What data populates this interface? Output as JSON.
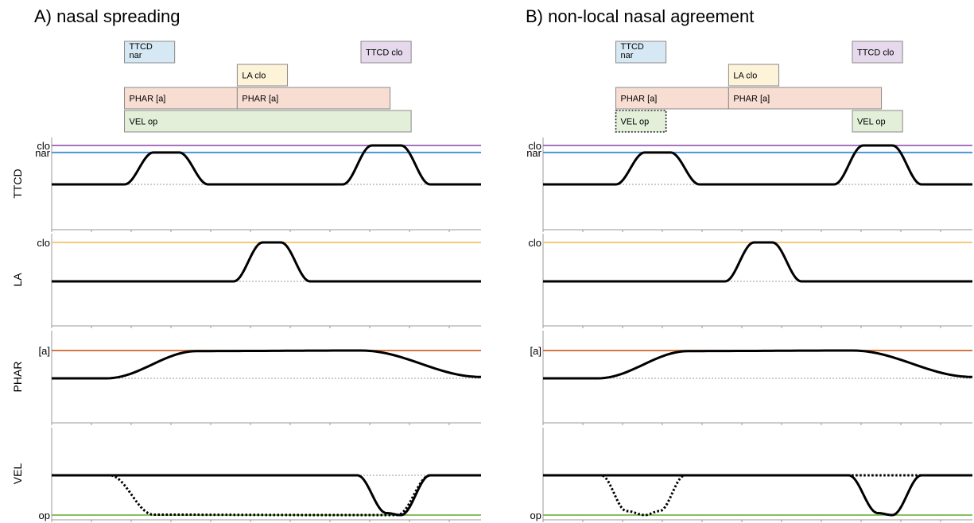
{
  "colors": {
    "ttcd_box": "#d6e8f3",
    "ttcd_clo_box": "#e6d9ec",
    "la_box": "#fdf3d9",
    "phar_box": "#f8ddd2",
    "vel_box": "#e3efd9",
    "clo_line": "#9b5fb5",
    "nar_line": "#3f8fd8",
    "la_line": "#f5c06a",
    "phar_line": "#c9642a",
    "vel_line": "#7ab648",
    "trajectory": "#000000",
    "baseline_dotted": "#777777",
    "axis": "#999999"
  },
  "panels": [
    {
      "id": "A",
      "title": "A) nasal spreading",
      "gestures": [
        {
          "label": "TTCD nar",
          "lines": [
            "TTCD",
            "nar"
          ],
          "color_key": "ttcd_box",
          "start": 2,
          "end": 3.38,
          "row": 0,
          "dotted": false
        },
        {
          "label": "TTCD clo",
          "lines": [
            "TTCD clo"
          ],
          "color_key": "ttcd_clo_box",
          "start": 8.5,
          "end": 9.88,
          "row": 0,
          "dotted": false
        },
        {
          "label": "LA clo",
          "lines": [
            "LA clo"
          ],
          "color_key": "la_box",
          "start": 5.1,
          "end": 6.48,
          "row": 1,
          "dotted": false
        },
        {
          "label": "PHAR [a]",
          "lines": [
            "PHAR [a]"
          ],
          "color_key": "phar_box",
          "start": 2,
          "end": 5.1,
          "row": 2,
          "dotted": false
        },
        {
          "label": "PHAR [a]",
          "lines": [
            "PHAR [a]"
          ],
          "color_key": "phar_box",
          "start": 5.1,
          "end": 9.3,
          "row": 2,
          "dotted": false
        },
        {
          "label": "VEL op",
          "lines": [
            "VEL op"
          ],
          "color_key": "vel_box",
          "start": 2,
          "end": 9.88,
          "row": 3,
          "dotted": false
        }
      ],
      "tiers": [
        {
          "name": "TTCD",
          "targets": [
            {
              "label": "clo",
              "level": 1.0,
              "color_key": "clo_line"
            },
            {
              "label": "nar",
              "level": 0.82,
              "color_key": "nar_line"
            }
          ],
          "solid": [
            [
              0,
              0.0
            ],
            [
              2,
              0.0
            ],
            [
              2.8,
              0.82
            ],
            [
              3.5,
              0.82
            ],
            [
              4.3,
              0.0
            ],
            [
              8.0,
              0.0
            ],
            [
              8.8,
              1.0
            ],
            [
              9.6,
              1.0
            ],
            [
              10.4,
              0.0
            ],
            [
              11.8,
              0.0
            ]
          ],
          "dotted": []
        },
        {
          "name": "LA",
          "targets": [
            {
              "label": "clo",
              "level": 1.0,
              "color_key": "la_line"
            }
          ],
          "solid": [
            [
              0,
              0.0
            ],
            [
              5.0,
              0.0
            ],
            [
              5.8,
              1.0
            ],
            [
              6.3,
              1.0
            ],
            [
              7.1,
              0.0
            ],
            [
              11.8,
              0.0
            ]
          ],
          "dotted": []
        },
        {
          "name": "PHAR",
          "targets": [
            {
              "label": "[a]",
              "level": 1.0,
              "color_key": "phar_line"
            }
          ],
          "solid": [
            [
              0,
              0.0
            ],
            [
              1.5,
              0.0
            ],
            [
              4.0,
              0.98
            ],
            [
              8.5,
              1.0
            ],
            [
              11.8,
              0.05
            ]
          ],
          "dotted": []
        },
        {
          "name": "VEL",
          "targets": [
            {
              "label": "op",
              "level": 1.0,
              "color_key": "vel_line"
            }
          ],
          "solid": [
            [
              0,
              0.0
            ],
            [
              8.4,
              0.0
            ],
            [
              9.2,
              0.95
            ],
            [
              9.6,
              1.0
            ],
            [
              10.4,
              0.0
            ],
            [
              11.8,
              0.0
            ]
          ],
          "dotted": [
            [
              0,
              0.0
            ],
            [
              1.6,
              0.0
            ],
            [
              2.8,
              0.99
            ],
            [
              8.0,
              1.0
            ],
            [
              9.5,
              1.0
            ],
            [
              10.4,
              0.0
            ],
            [
              11.8,
              0.0
            ]
          ]
        }
      ]
    },
    {
      "id": "B",
      "title": "B) non-local nasal agreement",
      "gestures": [
        {
          "label": "TTCD nar",
          "lines": [
            "TTCD",
            "nar"
          ],
          "color_key": "ttcd_box",
          "start": 2,
          "end": 3.38,
          "row": 0,
          "dotted": false
        },
        {
          "label": "TTCD clo",
          "lines": [
            "TTCD clo"
          ],
          "color_key": "ttcd_clo_box",
          "start": 8.5,
          "end": 9.88,
          "row": 0,
          "dotted": false
        },
        {
          "label": "LA clo",
          "lines": [
            "LA clo"
          ],
          "color_key": "la_box",
          "start": 5.1,
          "end": 6.48,
          "row": 1,
          "dotted": false
        },
        {
          "label": "PHAR [a]",
          "lines": [
            "PHAR [a]"
          ],
          "color_key": "phar_box",
          "start": 2,
          "end": 5.1,
          "row": 2,
          "dotted": false
        },
        {
          "label": "PHAR [a]",
          "lines": [
            "PHAR [a]"
          ],
          "color_key": "phar_box",
          "start": 5.1,
          "end": 9.3,
          "row": 2,
          "dotted": false
        },
        {
          "label": "VEL op",
          "lines": [
            "VEL op"
          ],
          "color_key": "vel_box",
          "start": 2,
          "end": 3.38,
          "row": 3,
          "dotted": true
        },
        {
          "label": "VEL op",
          "lines": [
            "VEL op"
          ],
          "color_key": "vel_box",
          "start": 8.5,
          "end": 9.88,
          "row": 3,
          "dotted": false
        }
      ],
      "tiers": [
        {
          "name": "TTCD",
          "targets": [
            {
              "label": "clo",
              "level": 1.0,
              "color_key": "clo_line"
            },
            {
              "label": "nar",
              "level": 0.82,
              "color_key": "nar_line"
            }
          ],
          "solid": [
            [
              0,
              0.0
            ],
            [
              2,
              0.0
            ],
            [
              2.8,
              0.82
            ],
            [
              3.5,
              0.82
            ],
            [
              4.3,
              0.0
            ],
            [
              8.0,
              0.0
            ],
            [
              8.8,
              1.0
            ],
            [
              9.6,
              1.0
            ],
            [
              10.4,
              0.0
            ],
            [
              11.8,
              0.0
            ]
          ],
          "dotted": []
        },
        {
          "name": "LA",
          "targets": [
            {
              "label": "clo",
              "level": 1.0,
              "color_key": "la_line"
            }
          ],
          "solid": [
            [
              0,
              0.0
            ],
            [
              5.0,
              0.0
            ],
            [
              5.8,
              1.0
            ],
            [
              6.3,
              1.0
            ],
            [
              7.1,
              0.0
            ],
            [
              11.8,
              0.0
            ]
          ],
          "dotted": []
        },
        {
          "name": "PHAR",
          "targets": [
            {
              "label": "[a]",
              "level": 1.0,
              "color_key": "phar_line"
            }
          ],
          "solid": [
            [
              0,
              0.0
            ],
            [
              1.5,
              0.0
            ],
            [
              4.0,
              0.98
            ],
            [
              8.5,
              1.0
            ],
            [
              11.8,
              0.05
            ]
          ],
          "dotted": []
        },
        {
          "name": "VEL",
          "targets": [
            {
              "label": "op",
              "level": 1.0,
              "color_key": "vel_line"
            }
          ],
          "solid": [
            [
              0,
              0.0
            ],
            [
              8.4,
              0.0
            ],
            [
              9.2,
              0.95
            ],
            [
              9.6,
              1.0
            ],
            [
              10.4,
              0.0
            ],
            [
              11.8,
              0.0
            ]
          ],
          "dotted": [
            [
              0,
              0.0
            ],
            [
              1.6,
              0.0
            ],
            [
              2.3,
              0.9
            ],
            [
              2.8,
              1.0
            ],
            [
              3.2,
              0.9
            ],
            [
              3.9,
              0.0
            ],
            [
              11.8,
              0.0
            ]
          ]
        }
      ]
    }
  ]
}
